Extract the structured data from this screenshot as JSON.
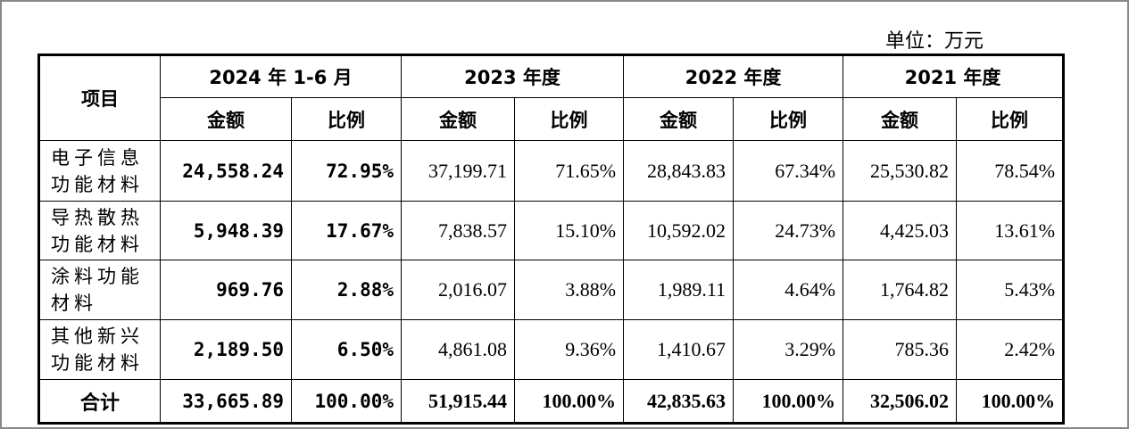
{
  "unit": "单位：万元",
  "table": {
    "item_header": "项目",
    "periods": [
      "2024 年 1-6 月",
      "2023 年度",
      "2022 年度",
      "2021 年度"
    ],
    "subheaders": [
      "金额",
      "比例",
      "金额",
      "比例",
      "金额",
      "比例",
      "金额",
      "比例"
    ],
    "rows": [
      [
        "电子信息功能材料",
        "24,558.24",
        "72.95%",
        "37,199.71",
        "71.65%",
        "28,843.83",
        "67.34%",
        "25,530.82",
        "78.54%"
      ],
      [
        "导热散热功能材料",
        "5,948.39",
        "17.67%",
        "7,838.57",
        "15.10%",
        "10,592.02",
        "24.73%",
        "4,425.03",
        "13.61%"
      ],
      [
        "涂料功能材料",
        "969.76",
        "2.88%",
        "2,016.07",
        "3.88%",
        "1,989.11",
        "4.64%",
        "1,764.82",
        "5.43%"
      ],
      [
        "其他新兴功能材料",
        "2,189.50",
        "6.50%",
        "4,861.08",
        "9.36%",
        "1,410.67",
        "3.29%",
        "785.36",
        "2.42%"
      ]
    ],
    "total": [
      "合计",
      "33,665.89",
      "100.00%",
      "51,915.44",
      "100.00%",
      "42,835.63",
      "100.00%",
      "32,506.02",
      "100.00%"
    ]
  }
}
